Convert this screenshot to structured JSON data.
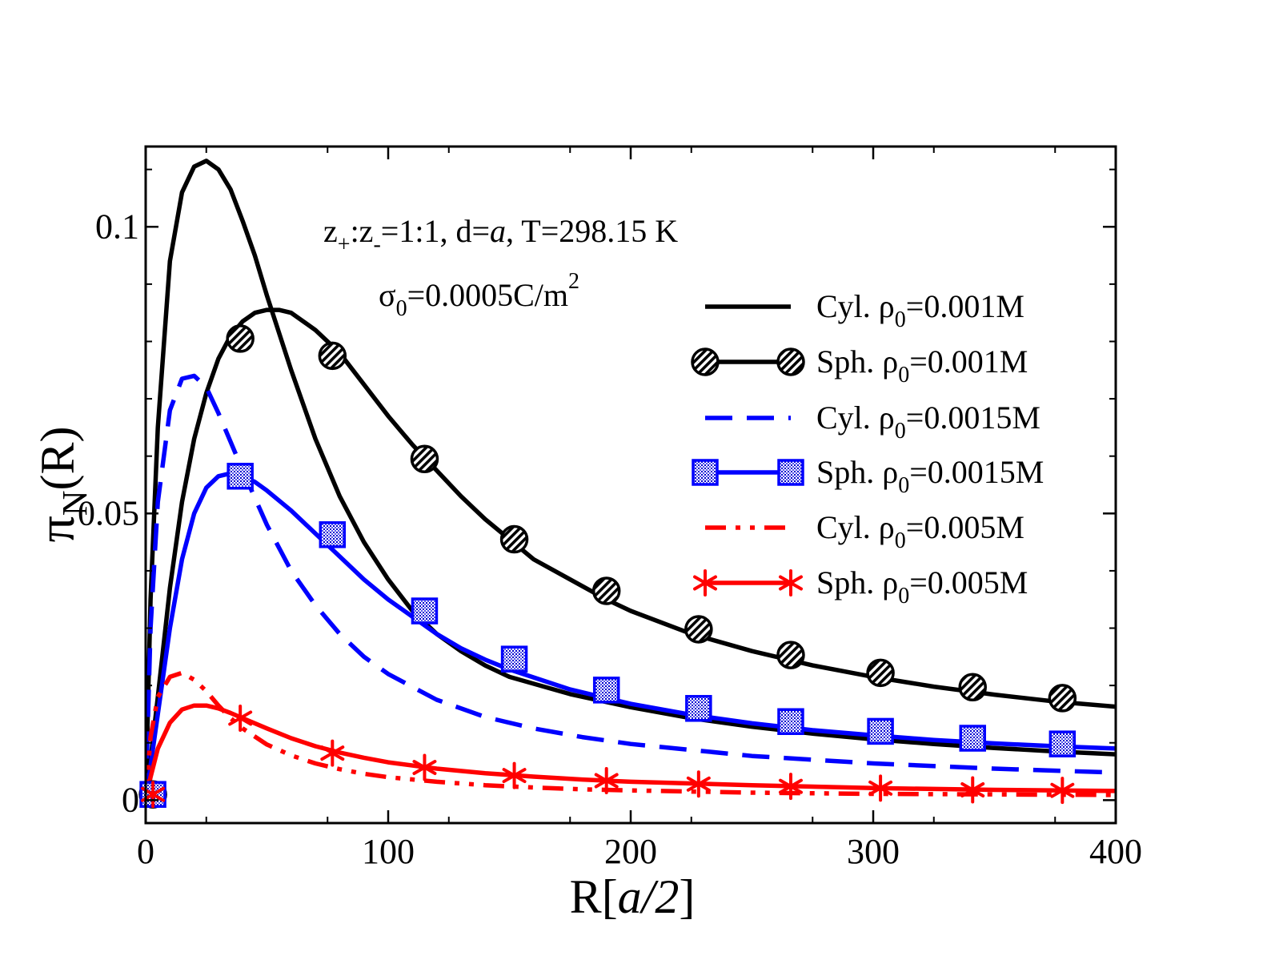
{
  "chart_data": {
    "type": "line",
    "xlabel": {
      "main": "R[",
      "italic": "a/2",
      "close": "]"
    },
    "ylabel": {
      "main": "π",
      "sub": "N",
      "tail": "(R)"
    },
    "xlim": [
      0,
      400
    ],
    "ylim": [
      -0.004,
      0.114
    ],
    "xticks": [
      0,
      100,
      200,
      300,
      400
    ],
    "xtick_labels": [
      "0",
      "100",
      "200",
      "300",
      "400"
    ],
    "yticks": [
      0,
      0.05,
      0.1
    ],
    "ytick_labels": [
      "0",
      "0.05",
      "0.1"
    ],
    "grid": false,
    "legend_position": "right",
    "annotation_line1": {
      "z": "z",
      "plus": "+",
      "colon": ":z",
      "minus": "-",
      "rest1": "=1:1, d=",
      "a": "a",
      "rest2": ", T=298.15 K"
    },
    "annotation_line2": {
      "sigma": "σ",
      "sub0": "0",
      "rest": "=0.0005C/m",
      "sup": "2"
    },
    "colors": {
      "black": "#000000",
      "blue": "#0000ff",
      "red": "#ff0000"
    },
    "series": [
      {
        "legend": {
          "pre": "Cyl. ρ",
          "sub": "0",
          "post": "=0.001M"
        },
        "color": "#000000",
        "dash": "solid",
        "marker": "none",
        "x": [
          0,
          2,
          5,
          10,
          15,
          20,
          25,
          30,
          35,
          40,
          45,
          50,
          60,
          70,
          80,
          90,
          100,
          110,
          120,
          130,
          140,
          150,
          175,
          200,
          225,
          250,
          275,
          300,
          325,
          350,
          375,
          400
        ],
        "y": [
          0.0,
          0.035,
          0.065,
          0.094,
          0.106,
          0.1105,
          0.1115,
          0.11,
          0.1065,
          0.101,
          0.095,
          0.088,
          0.075,
          0.063,
          0.053,
          0.045,
          0.0385,
          0.033,
          0.029,
          0.026,
          0.0235,
          0.0215,
          0.0185,
          0.0162,
          0.0143,
          0.0128,
          0.0116,
          0.0106,
          0.0098,
          0.0091,
          0.0085,
          0.008
        ]
      },
      {
        "legend": {
          "pre": "Sph. ρ",
          "sub": "0",
          "post": "=0.001M"
        },
        "color": "#000000",
        "dash": "solid",
        "marker": "hatched-circle",
        "x": [
          0,
          2,
          5,
          10,
          15,
          20,
          25,
          30,
          35,
          40,
          45,
          50,
          55,
          60,
          70,
          80,
          90,
          100,
          110,
          120,
          130,
          140,
          150,
          160,
          175,
          190,
          200,
          225,
          250,
          275,
          300,
          325,
          350,
          375,
          400
        ],
        "y": [
          0.0,
          0.007,
          0.018,
          0.037,
          0.052,
          0.063,
          0.071,
          0.077,
          0.081,
          0.0835,
          0.085,
          0.0855,
          0.0855,
          0.085,
          0.082,
          0.078,
          0.0725,
          0.067,
          0.062,
          0.0575,
          0.053,
          0.049,
          0.0455,
          0.042,
          0.0385,
          0.035,
          0.033,
          0.029,
          0.026,
          0.0235,
          0.0215,
          0.0198,
          0.0184,
          0.0172,
          0.0163
        ],
        "markers_x": [
          3,
          39,
          77,
          115,
          152,
          190,
          228,
          266,
          303,
          341,
          378
        ],
        "markers_y": [
          0.001,
          0.0805,
          0.0775,
          0.0595,
          0.0455,
          0.0365,
          0.0298,
          0.0253,
          0.0222,
          0.0197,
          0.0178
        ]
      },
      {
        "legend": {
          "pre": "Cyl. ρ",
          "sub": "0",
          "post": "=0.0015M"
        },
        "color": "#0000ff",
        "dash": "dashed",
        "marker": "none",
        "x": [
          0,
          2,
          5,
          10,
          15,
          20,
          25,
          30,
          35,
          40,
          50,
          60,
          70,
          80,
          90,
          100,
          120,
          140,
          160,
          180,
          200,
          250,
          300,
          350,
          400
        ],
        "y": [
          0.0,
          0.03,
          0.052,
          0.068,
          0.0735,
          0.074,
          0.072,
          0.0675,
          0.0625,
          0.0575,
          0.048,
          0.04,
          0.034,
          0.029,
          0.025,
          0.022,
          0.0175,
          0.0145,
          0.0125,
          0.011,
          0.0098,
          0.0077,
          0.0064,
          0.0055,
          0.0048
        ]
      },
      {
        "legend": {
          "pre": "Sph. ρ",
          "sub": "0",
          "post": "=0.0015M"
        },
        "color": "#0000ff",
        "dash": "solid",
        "marker": "dotted-square",
        "x": [
          0,
          2,
          5,
          10,
          15,
          20,
          25,
          30,
          35,
          40,
          45,
          50,
          60,
          70,
          80,
          90,
          100,
          110,
          120,
          130,
          140,
          150,
          175,
          200,
          225,
          250,
          275,
          300,
          325,
          350,
          375,
          400
        ],
        "y": [
          0.0,
          0.006,
          0.015,
          0.03,
          0.042,
          0.05,
          0.0545,
          0.0565,
          0.057,
          0.0565,
          0.0555,
          0.054,
          0.0505,
          0.0465,
          0.0425,
          0.0385,
          0.035,
          0.032,
          0.029,
          0.0265,
          0.0245,
          0.0228,
          0.0193,
          0.0168,
          0.0149,
          0.0134,
          0.0122,
          0.0113,
          0.0105,
          0.0099,
          0.0094,
          0.009
        ],
        "markers_x": [
          3,
          39,
          77,
          115,
          152,
          190,
          228,
          266,
          303,
          341,
          378
        ],
        "markers_y": [
          0.001,
          0.0565,
          0.0463,
          0.033,
          0.0246,
          0.0192,
          0.016,
          0.0137,
          0.012,
          0.0108,
          0.0098
        ]
      },
      {
        "legend": {
          "pre": "Cyl. ρ",
          "sub": "0",
          "post": "=0.005M"
        },
        "color": "#ff0000",
        "dash": "dashdotdot",
        "marker": "none",
        "x": [
          0,
          2,
          5,
          10,
          15,
          20,
          25,
          30,
          35,
          40,
          50,
          60,
          70,
          80,
          90,
          100,
          120,
          140,
          160,
          180,
          200,
          250,
          300,
          350,
          400
        ],
        "y": [
          0.0,
          0.011,
          0.018,
          0.0215,
          0.0222,
          0.021,
          0.019,
          0.0165,
          0.0143,
          0.0125,
          0.0097,
          0.0078,
          0.0064,
          0.0054,
          0.0046,
          0.004,
          0.0032,
          0.0026,
          0.0022,
          0.0019,
          0.0017,
          0.0013,
          0.0011,
          0.001,
          0.0009
        ]
      },
      {
        "legend": {
          "pre": "Sph. ρ",
          "sub": "0",
          "post": "=0.005M"
        },
        "color": "#ff0000",
        "dash": "solid",
        "marker": "asterisk",
        "x": [
          0,
          2,
          5,
          10,
          15,
          20,
          25,
          30,
          35,
          40,
          50,
          60,
          70,
          80,
          90,
          100,
          120,
          140,
          160,
          180,
          200,
          250,
          300,
          350,
          400
        ],
        "y": [
          0.0,
          0.004,
          0.009,
          0.0135,
          0.0158,
          0.0165,
          0.0165,
          0.016,
          0.0152,
          0.0143,
          0.0125,
          0.0108,
          0.0094,
          0.0083,
          0.0074,
          0.0066,
          0.0055,
          0.0047,
          0.0041,
          0.0036,
          0.0032,
          0.0026,
          0.0021,
          0.0018,
          0.0016
        ],
        "markers_x": [
          3,
          39,
          77,
          115,
          152,
          190,
          228,
          266,
          303,
          341,
          378
        ],
        "markers_y": [
          0.001,
          0.0143,
          0.0082,
          0.0057,
          0.0043,
          0.0034,
          0.0028,
          0.0024,
          0.0021,
          0.0018,
          0.0017
        ]
      }
    ]
  }
}
